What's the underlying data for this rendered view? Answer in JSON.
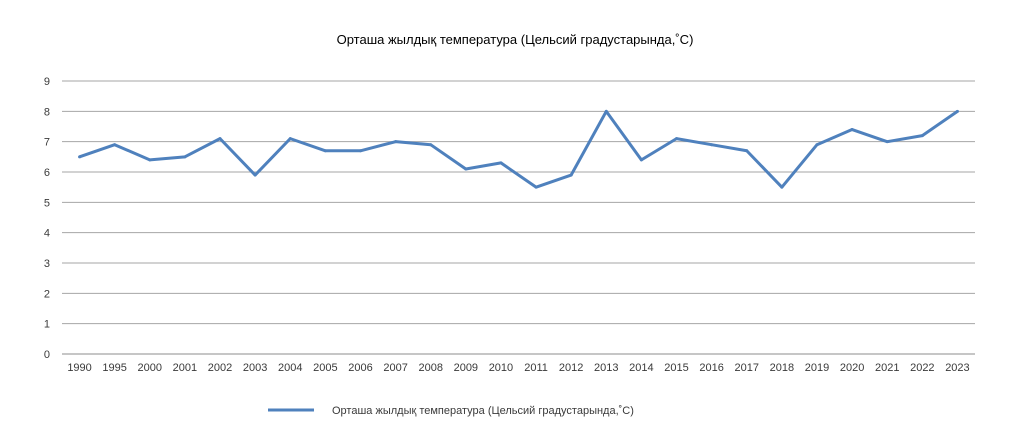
{
  "chart_data": {
    "type": "line",
    "title": "Орташа жылдық температура (Цельсий градустарында,˚С)",
    "xlabel": "",
    "ylabel": "",
    "categories": [
      "1990",
      "1995",
      "2000",
      "2001",
      "2002",
      "2003",
      "2004",
      "2005",
      "2006",
      "2007",
      "2008",
      "2009",
      "2010",
      "2011",
      "2012",
      "2013",
      "2014",
      "2015",
      "2016",
      "2017",
      "2018",
      "2019",
      "2020",
      "2021",
      "2022",
      "2023"
    ],
    "series": [
      {
        "name": "Орташа жылдық температура (Цельсий градустарында,˚С)",
        "values": [
          6.5,
          6.9,
          6.4,
          6.5,
          7.1,
          5.9,
          7.1,
          6.7,
          6.7,
          7.0,
          6.9,
          6.1,
          6.3,
          5.5,
          5.9,
          8.0,
          6.4,
          7.1,
          6.9,
          6.7,
          5.5,
          6.9,
          7.4,
          7.0,
          7.2,
          8.0
        ],
        "color": "#4f81bd"
      }
    ],
    "ylim": [
      0,
      9
    ],
    "yticks": [
      "0",
      "1",
      "2",
      "3",
      "4",
      "5",
      "6",
      "7",
      "8",
      "9"
    ],
    "grid": true,
    "legend": "bottom"
  }
}
